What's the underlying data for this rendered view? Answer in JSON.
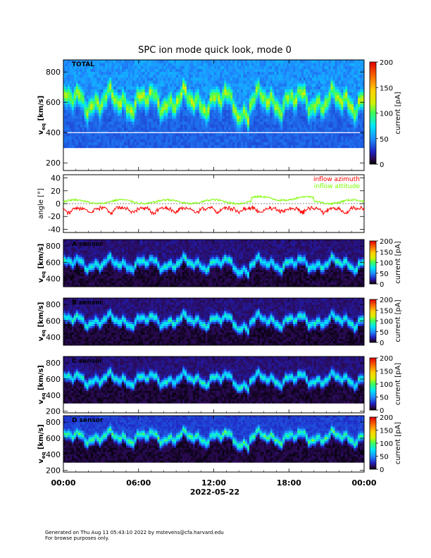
{
  "title": "SPC ion mode quick look, mode 0",
  "date_label": "2022-05-22",
  "x_tick_labels": [
    "00:00",
    "06:00",
    "12:00",
    "18:00",
    "00:00"
  ],
  "colors": {
    "inflow_azimuth": "#ff0000",
    "inflow_attitude": "#7cfc00",
    "background_velocity_line": "#ffffff"
  },
  "footer": {
    "line1": "Generated on Thu Aug 11 05:43:10 2022 by mstevens@cfa.harvard.edu",
    "line2": "For browse purposes only."
  },
  "chart_data": [
    {
      "type": "heatmap",
      "panel_label": "TOTAL",
      "ylabel": "v",
      "ylabel_sub": "eq",
      "ylabel_units": "[km/s]",
      "ylim": [
        150,
        880
      ],
      "y_ticks": [
        200,
        400,
        600,
        800
      ],
      "colorbar_label": "current [pA]",
      "colorbar_ticks": [
        0,
        50,
        100,
        150,
        200
      ],
      "colorbar_range": [
        0,
        200
      ],
      "reference_line_velocity": 400,
      "x_range_hours": [
        0,
        24
      ],
      "data_band": [
        300,
        880
      ],
      "core_speed_range_km_s": [
        440,
        700
      ]
    },
    {
      "type": "line",
      "ylabel": "angle [°]",
      "ylim": [
        -45,
        45
      ],
      "y_ticks": [
        -40,
        -20,
        0,
        20,
        40
      ],
      "x_range_hours": [
        0,
        24
      ],
      "series": [
        {
          "name": "inflow azimuth",
          "color": "#ff0000",
          "mean": -5,
          "range": [
            -20,
            5
          ]
        },
        {
          "name": "inflow attitude",
          "color": "#7cfc00",
          "mean": 3,
          "range": [
            -5,
            15
          ]
        }
      ]
    },
    {
      "type": "heatmap",
      "panel_label": "A sensor",
      "ylabel": "v",
      "ylabel_sub": "eq",
      "ylabel_units": "[km/s]",
      "ylim": [
        300,
        880
      ],
      "y_ticks": [
        400,
        600,
        800
      ],
      "colorbar_label": "current [pA]",
      "colorbar_ticks": [
        0,
        50,
        100,
        150,
        200
      ],
      "colorbar_range": [
        0,
        200
      ],
      "x_range_hours": [
        0,
        24
      ]
    },
    {
      "type": "heatmap",
      "panel_label": "B sensor",
      "ylabel": "v",
      "ylabel_sub": "eq",
      "ylabel_units": "[km/s]",
      "ylim": [
        300,
        880
      ],
      "y_ticks": [
        400,
        600,
        800
      ],
      "colorbar_label": "current [pA]",
      "colorbar_ticks": [
        0,
        50,
        100,
        150,
        200
      ],
      "colorbar_range": [
        0,
        200
      ],
      "x_range_hours": [
        0,
        24
      ]
    },
    {
      "type": "heatmap",
      "panel_label": "C sensor",
      "ylabel": "v",
      "ylabel_sub": "eq",
      "ylabel_units": "[km/s]",
      "ylim": [
        180,
        880
      ],
      "y_ticks": [
        200,
        400,
        600,
        800
      ],
      "colorbar_label": "current [pA]",
      "colorbar_ticks": [
        0,
        50,
        100,
        150,
        200
      ],
      "colorbar_range": [
        0,
        200
      ],
      "x_range_hours": [
        0,
        24
      ]
    },
    {
      "type": "heatmap",
      "panel_label": "D sensor",
      "ylabel": "v",
      "ylabel_sub": "eq",
      "ylabel_units": "[km/s]",
      "ylim": [
        180,
        880
      ],
      "y_ticks": [
        200,
        400,
        600,
        800
      ],
      "colorbar_label": "current [pA]",
      "colorbar_ticks": [
        0,
        50,
        100,
        150,
        200
      ],
      "colorbar_range": [
        0,
        200
      ],
      "x_range_hours": [
        0,
        24
      ]
    }
  ]
}
